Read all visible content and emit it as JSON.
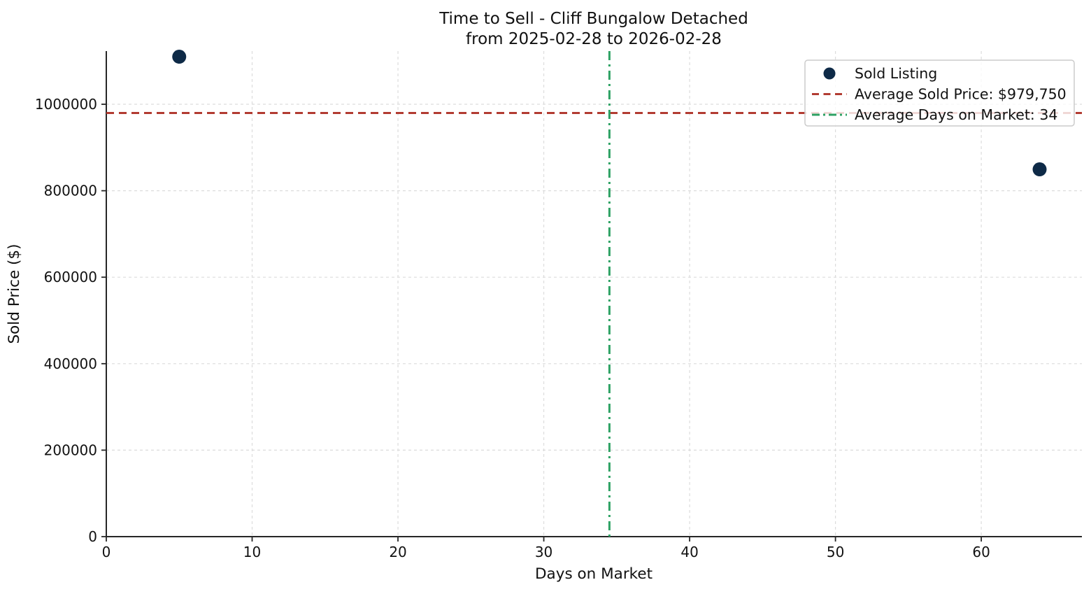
{
  "chart_data": {
    "type": "scatter",
    "title": "Time to Sell - Cliff Bungalow Detached",
    "subtitle": "from 2025-02-28 to 2026-02-28",
    "xlabel": "Days on Market",
    "ylabel": "Sold Price ($)",
    "xlim": [
      0,
      66.9
    ],
    "ylim": [
      0,
      1123000
    ],
    "x_ticks": [
      0,
      10,
      20,
      30,
      40,
      50,
      60
    ],
    "y_ticks": [
      0,
      200000,
      400000,
      600000,
      800000,
      1000000
    ],
    "grid": true,
    "grid_style": "dashed",
    "points": [
      {
        "days_on_market": 5,
        "sold_price": 1110000
      },
      {
        "days_on_market": 64,
        "sold_price": 849500
      }
    ],
    "avg_sold_price": 979750,
    "avg_days_on_market": 34.5,
    "legend": {
      "position": "upper right",
      "entries": [
        {
          "label": "Sold Listing",
          "sample": "marker",
          "color": "#0e2a47"
        },
        {
          "label": "Average Sold Price: $979,750",
          "sample": "dashed-line",
          "color": "#b23c32"
        },
        {
          "label": "Average Days on Market: 34",
          "sample": "dashdot-line",
          "color": "#2ea264"
        }
      ]
    },
    "colors": {
      "point": "#0e2a47",
      "avg_price_line": "#b23c32",
      "avg_days_line": "#2ea264",
      "grid": "#dcdcdc",
      "axis": "#262626",
      "text": "#111111"
    }
  }
}
